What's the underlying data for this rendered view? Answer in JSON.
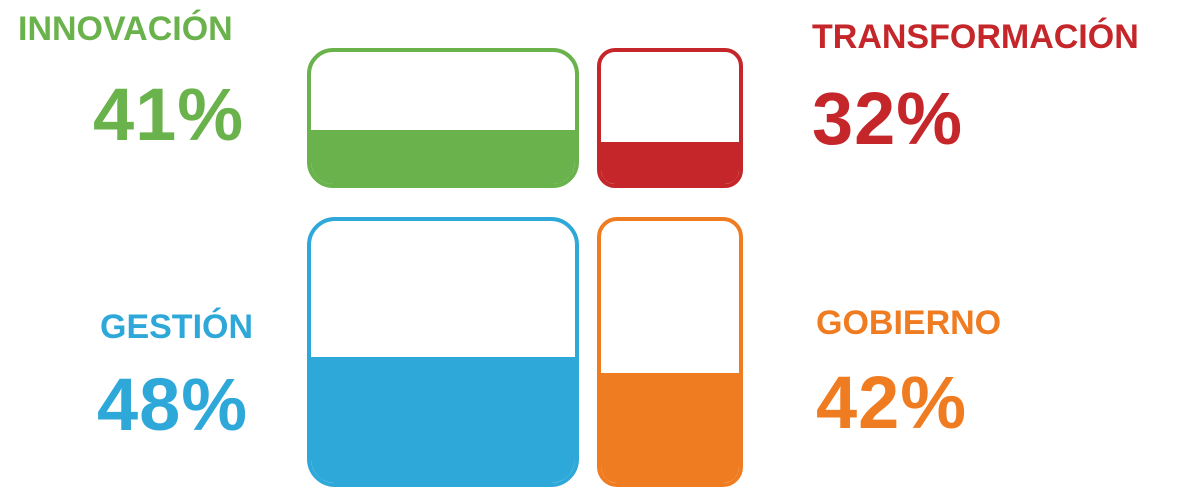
{
  "chart_data": {
    "type": "bar",
    "categories": [
      "INNOVACIÓN",
      "TRANSFORMACIÓN",
      "GESTIÓN",
      "GOBIERNO"
    ],
    "values": [
      41,
      32,
      48,
      42
    ],
    "value_labels": [
      "41%",
      "32%",
      "48%",
      "42%"
    ],
    "unit": "%",
    "ylim": [
      0,
      100
    ],
    "colors": [
      "#6ab24c",
      "#c4262a",
      "#2ea8d8",
      "#f07c22"
    ]
  }
}
